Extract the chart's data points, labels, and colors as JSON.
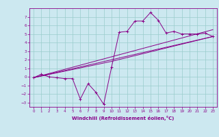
{
  "xlabel": "Windchill (Refroidissement éolien,°C)",
  "bg_color": "#cce8f0",
  "line_color": "#880088",
  "grid_color": "#99cccc",
  "xlim": [
    -0.5,
    23.5
  ],
  "ylim": [
    -3.5,
    8.0
  ],
  "xticks": [
    0,
    1,
    2,
    3,
    4,
    5,
    6,
    7,
    8,
    9,
    10,
    11,
    12,
    13,
    14,
    15,
    16,
    17,
    18,
    19,
    20,
    21,
    22,
    23
  ],
  "yticks": [
    -3,
    -2,
    -1,
    0,
    1,
    2,
    3,
    4,
    5,
    6,
    7
  ],
  "line1_x": [
    0,
    1,
    2,
    3,
    4,
    5,
    6,
    7,
    8,
    9,
    10,
    11,
    12,
    13,
    14,
    15,
    16,
    17,
    18,
    19,
    20,
    21,
    22,
    23
  ],
  "line1_y": [
    -0.1,
    0.3,
    0.0,
    -0.1,
    -0.2,
    -0.2,
    -2.6,
    -0.8,
    -1.8,
    -3.2,
    1.1,
    5.2,
    5.3,
    6.5,
    6.5,
    7.5,
    6.6,
    5.1,
    5.3,
    5.0,
    5.0,
    5.0,
    5.1,
    4.7
  ],
  "line2_x": [
    0,
    23
  ],
  "line2_y": [
    -0.1,
    4.7
  ],
  "line3_x": [
    0,
    10,
    23
  ],
  "line3_y": [
    -0.1,
    1.8,
    4.7
  ],
  "line4_x": [
    0,
    23
  ],
  "line4_y": [
    -0.1,
    5.5
  ]
}
